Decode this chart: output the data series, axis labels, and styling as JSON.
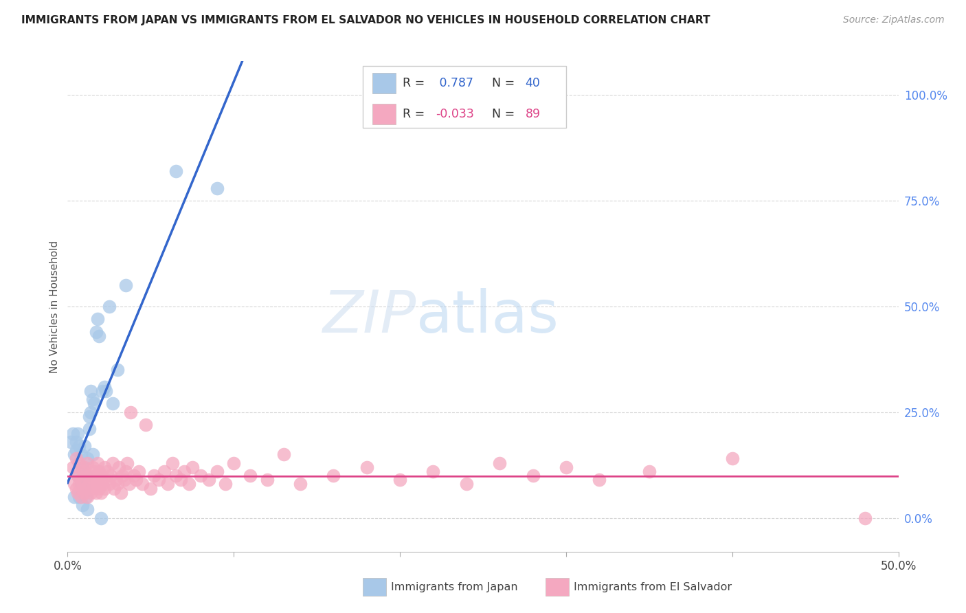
{
  "title": "IMMIGRANTS FROM JAPAN VS IMMIGRANTS FROM EL SALVADOR NO VEHICLES IN HOUSEHOLD CORRELATION CHART",
  "source": "Source: ZipAtlas.com",
  "ylabel": "No Vehicles in Household",
  "xmin": 0.0,
  "xmax": 0.5,
  "ymin": -0.08,
  "ymax": 1.08,
  "watermark_zip": "ZIP",
  "watermark_atlas": "atlas",
  "legend_r1": "R = ",
  "legend_v1": " 0.787",
  "legend_n1": "N = ",
  "legend_nv1": "40",
  "legend_r2": "R = ",
  "legend_v2": "-0.033",
  "legend_n2": "N = ",
  "legend_nv2": "89",
  "japan_color": "#a8c8e8",
  "salvador_color": "#f4a8c0",
  "japan_line_color": "#3366cc",
  "salvador_line_color": "#dd4488",
  "japan_scatter_x": [
    0.002,
    0.003,
    0.004,
    0.004,
    0.005,
    0.005,
    0.006,
    0.006,
    0.007,
    0.007,
    0.008,
    0.008,
    0.009,
    0.009,
    0.01,
    0.01,
    0.011,
    0.011,
    0.012,
    0.012,
    0.013,
    0.013,
    0.014,
    0.014,
    0.015,
    0.015,
    0.016,
    0.017,
    0.018,
    0.019,
    0.02,
    0.021,
    0.022,
    0.023,
    0.025,
    0.027,
    0.03,
    0.035,
    0.065,
    0.09
  ],
  "japan_scatter_y": [
    0.18,
    0.2,
    0.05,
    0.15,
    0.16,
    0.18,
    0.1,
    0.2,
    0.05,
    0.17,
    0.08,
    0.15,
    0.03,
    0.12,
    0.07,
    0.17,
    0.05,
    0.1,
    0.02,
    0.14,
    0.21,
    0.24,
    0.3,
    0.25,
    0.15,
    0.28,
    0.27,
    0.44,
    0.47,
    0.43,
    0.0,
    0.3,
    0.31,
    0.3,
    0.5,
    0.27,
    0.35,
    0.55,
    0.82,
    0.78
  ],
  "salvador_scatter_x": [
    0.003,
    0.004,
    0.005,
    0.005,
    0.006,
    0.006,
    0.007,
    0.007,
    0.008,
    0.008,
    0.009,
    0.009,
    0.01,
    0.01,
    0.011,
    0.011,
    0.012,
    0.012,
    0.013,
    0.013,
    0.014,
    0.014,
    0.015,
    0.015,
    0.016,
    0.016,
    0.017,
    0.017,
    0.018,
    0.018,
    0.019,
    0.019,
    0.02,
    0.02,
    0.021,
    0.022,
    0.022,
    0.023,
    0.024,
    0.025,
    0.026,
    0.027,
    0.028,
    0.029,
    0.03,
    0.031,
    0.032,
    0.033,
    0.034,
    0.035,
    0.036,
    0.037,
    0.038,
    0.04,
    0.041,
    0.043,
    0.045,
    0.047,
    0.05,
    0.052,
    0.055,
    0.058,
    0.06,
    0.063,
    0.065,
    0.068,
    0.07,
    0.073,
    0.075,
    0.08,
    0.085,
    0.09,
    0.095,
    0.1,
    0.11,
    0.12,
    0.13,
    0.14,
    0.16,
    0.18,
    0.2,
    0.22,
    0.24,
    0.26,
    0.28,
    0.3,
    0.32,
    0.35,
    0.4,
    0.48
  ],
  "salvador_scatter_y": [
    0.12,
    0.08,
    0.07,
    0.14,
    0.06,
    0.1,
    0.08,
    0.13,
    0.05,
    0.09,
    0.07,
    0.11,
    0.06,
    0.12,
    0.07,
    0.1,
    0.05,
    0.13,
    0.08,
    0.1,
    0.06,
    0.09,
    0.07,
    0.12,
    0.08,
    0.11,
    0.06,
    0.1,
    0.09,
    0.13,
    0.07,
    0.11,
    0.06,
    0.1,
    0.08,
    0.12,
    0.07,
    0.09,
    0.11,
    0.08,
    0.1,
    0.13,
    0.07,
    0.09,
    0.08,
    0.12,
    0.06,
    0.1,
    0.09,
    0.11,
    0.13,
    0.08,
    0.25,
    0.1,
    0.09,
    0.11,
    0.08,
    0.22,
    0.07,
    0.1,
    0.09,
    0.11,
    0.08,
    0.13,
    0.1,
    0.09,
    0.11,
    0.08,
    0.12,
    0.1,
    0.09,
    0.11,
    0.08,
    0.13,
    0.1,
    0.09,
    0.15,
    0.08,
    0.1,
    0.12,
    0.09,
    0.11,
    0.08,
    0.13,
    0.1,
    0.12,
    0.09,
    0.11,
    0.14,
    0.0
  ],
  "background_color": "#ffffff",
  "grid_color": "#cccccc",
  "title_color": "#222222",
  "right_tick_color": "#5588ee",
  "y_ticks": [
    0.0,
    0.25,
    0.5,
    0.75,
    1.0
  ],
  "x_tick_marks": [
    0.0,
    0.1,
    0.2,
    0.3,
    0.4,
    0.5
  ]
}
